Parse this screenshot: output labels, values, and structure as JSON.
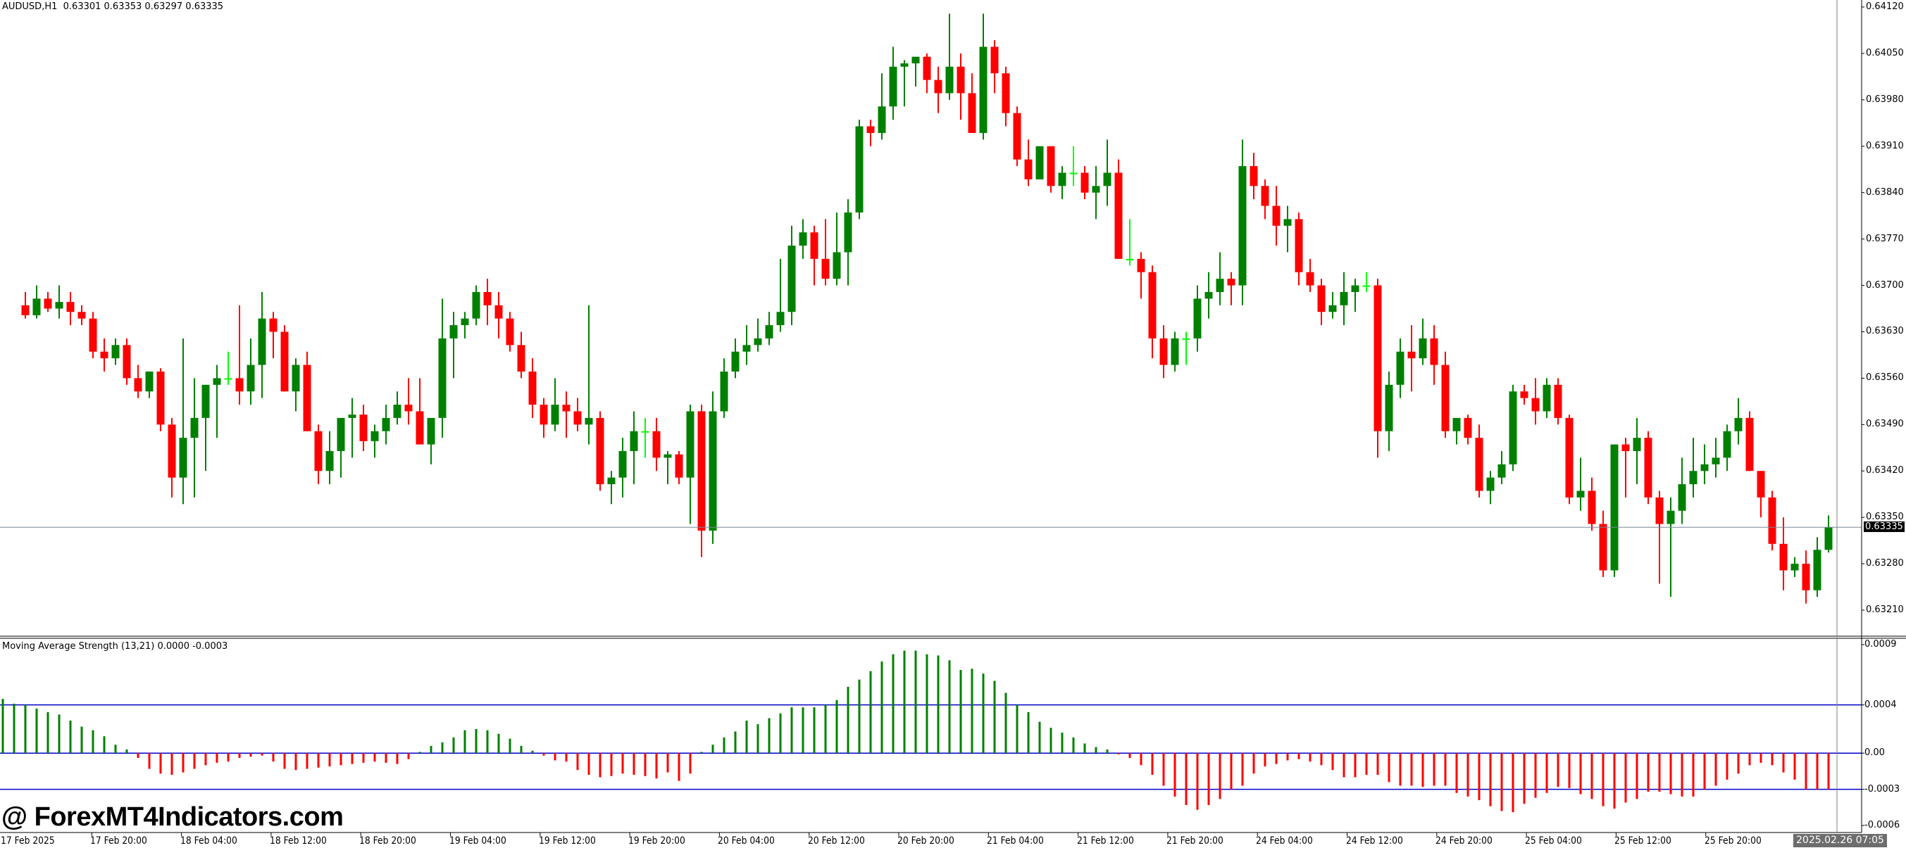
{
  "header": {
    "symbol": "AUDUSD,H1",
    "ohlc_text": "AUDUSD,H1  0.63301 0.63353 0.63297 0.63335"
  },
  "indicator": {
    "title": "Moving Average Strength (13,21) 0.0000 -0.0003"
  },
  "watermark": "@ ForexMT4Indicators.com",
  "current_price_tag": "0.63335",
  "crosshair_time_tag": "2025.02.26 07:05",
  "colors": {
    "bull": "#008000",
    "bear": "#ff0000",
    "doji": "#00ff00",
    "level_line": "#0000cc",
    "price_line": "#778899"
  },
  "chart_data": [
    {
      "type": "candlestick",
      "title": "AUDUSD,H1",
      "ylabel": "Price",
      "ylim": [
        0.6318,
        0.6413
      ],
      "y_ticks": [
        "0.64120",
        "0.64050",
        "0.63980",
        "0.63910",
        "0.63840",
        "0.63770",
        "0.63700",
        "0.63630",
        "0.63560",
        "0.63490",
        "0.63420",
        "0.63350",
        "0.63280",
        "0.63210"
      ],
      "x_ticks": [
        "17 Feb 2025",
        "17 Feb 20:00",
        "18 Feb 04:00",
        "18 Feb 12:00",
        "18 Feb 20:00",
        "19 Feb 04:00",
        "19 Feb 12:00",
        "19 Feb 20:00",
        "20 Feb 04:00",
        "20 Feb 12:00",
        "20 Feb 20:00",
        "21 Feb 04:00",
        "21 Feb 12:00",
        "21 Feb 20:00",
        "24 Feb 04:00",
        "24 Feb 12:00",
        "24 Feb 20:00",
        "25 Feb 04:00",
        "25 Feb 12:00",
        "25 Feb 20:00"
      ],
      "last_bar": {
        "open": 0.63301,
        "high": 0.63353,
        "low": 0.63297,
        "close": 0.63335
      },
      "current_price": 0.63335,
      "ohlc": [
        [
          0.6367,
          0.6369,
          0.6365,
          0.63655
        ],
        [
          0.63655,
          0.637,
          0.6365,
          0.6368
        ],
        [
          0.6368,
          0.6369,
          0.6366,
          0.63665
        ],
        [
          0.63665,
          0.637,
          0.6365,
          0.63675
        ],
        [
          0.63675,
          0.6369,
          0.6364,
          0.6366
        ],
        [
          0.6366,
          0.6367,
          0.6364,
          0.6365
        ],
        [
          0.6365,
          0.6366,
          0.6359,
          0.636
        ],
        [
          0.636,
          0.6362,
          0.6357,
          0.6359
        ],
        [
          0.6359,
          0.6362,
          0.6358,
          0.6361
        ],
        [
          0.6361,
          0.6362,
          0.6355,
          0.6356
        ],
        [
          0.6356,
          0.6358,
          0.6353,
          0.6354
        ],
        [
          0.6354,
          0.6357,
          0.6353,
          0.6357
        ],
        [
          0.6357,
          0.63575,
          0.6348,
          0.6349
        ],
        [
          0.6349,
          0.635,
          0.6338,
          0.6341
        ],
        [
          0.6341,
          0.6362,
          0.6337,
          0.6347
        ],
        [
          0.6347,
          0.6356,
          0.6338,
          0.635
        ],
        [
          0.635,
          0.6354,
          0.6342,
          0.6355
        ],
        [
          0.6355,
          0.6358,
          0.6347,
          0.6356
        ],
        [
          0.6356,
          0.636,
          0.6355,
          0.6356
        ],
        [
          0.6356,
          0.6367,
          0.6352,
          0.6354
        ],
        [
          0.6354,
          0.6362,
          0.6352,
          0.6358
        ],
        [
          0.6358,
          0.6369,
          0.6353,
          0.6365
        ],
        [
          0.6365,
          0.6366,
          0.6359,
          0.6363
        ],
        [
          0.6363,
          0.6364,
          0.6354,
          0.6354
        ],
        [
          0.6354,
          0.6359,
          0.6351,
          0.6358
        ],
        [
          0.6358,
          0.636,
          0.6348,
          0.6348
        ],
        [
          0.6348,
          0.6349,
          0.634,
          0.6342
        ],
        [
          0.6342,
          0.6348,
          0.634,
          0.6345
        ],
        [
          0.6345,
          0.6348,
          0.6341,
          0.635
        ],
        [
          0.635,
          0.6353,
          0.6344,
          0.63505
        ],
        [
          0.63505,
          0.6352,
          0.6345,
          0.63465
        ],
        [
          0.63465,
          0.6349,
          0.6344,
          0.6348
        ],
        [
          0.6348,
          0.6352,
          0.6346,
          0.635
        ],
        [
          0.635,
          0.6354,
          0.6349,
          0.6352
        ],
        [
          0.6352,
          0.6356,
          0.6349,
          0.6351
        ],
        [
          0.6351,
          0.6356,
          0.6349,
          0.6346
        ],
        [
          0.6346,
          0.6349,
          0.6343,
          0.635
        ],
        [
          0.635,
          0.6368,
          0.6347,
          0.6362
        ],
        [
          0.6362,
          0.6366,
          0.6356,
          0.6364
        ],
        [
          0.6364,
          0.6366,
          0.6362,
          0.6365
        ],
        [
          0.6365,
          0.637,
          0.6364,
          0.6369
        ],
        [
          0.6369,
          0.6371,
          0.6364,
          0.6367
        ],
        [
          0.6367,
          0.6369,
          0.6362,
          0.6365
        ],
        [
          0.6365,
          0.6366,
          0.636,
          0.6361
        ],
        [
          0.6361,
          0.6363,
          0.6356,
          0.6357
        ],
        [
          0.6357,
          0.6359,
          0.635,
          0.6352
        ],
        [
          0.6352,
          0.6353,
          0.6347,
          0.6349
        ],
        [
          0.6349,
          0.6356,
          0.6348,
          0.6352
        ],
        [
          0.6352,
          0.6354,
          0.6347,
          0.6351
        ],
        [
          0.6351,
          0.6353,
          0.6348,
          0.6349
        ],
        [
          0.6349,
          0.6367,
          0.6346,
          0.635
        ],
        [
          0.635,
          0.6351,
          0.6339,
          0.634
        ],
        [
          0.634,
          0.6342,
          0.6337,
          0.6341
        ],
        [
          0.6341,
          0.6347,
          0.6338,
          0.6345
        ],
        [
          0.6345,
          0.6351,
          0.634,
          0.6348
        ],
        [
          0.6348,
          0.635,
          0.6344,
          0.6348
        ],
        [
          0.6348,
          0.635,
          0.6342,
          0.6344
        ],
        [
          0.6344,
          0.6345,
          0.634,
          0.63445
        ],
        [
          0.63445,
          0.6345,
          0.634,
          0.6341
        ],
        [
          0.6341,
          0.6352,
          0.6334,
          0.6351
        ],
        [
          0.6351,
          0.6352,
          0.6329,
          0.6333
        ],
        [
          0.6333,
          0.6354,
          0.6331,
          0.6351
        ],
        [
          0.6351,
          0.6359,
          0.635,
          0.6357
        ],
        [
          0.6357,
          0.6362,
          0.6356,
          0.636
        ],
        [
          0.636,
          0.6364,
          0.6358,
          0.6361
        ],
        [
          0.6361,
          0.6365,
          0.636,
          0.6362
        ],
        [
          0.6362,
          0.6366,
          0.6361,
          0.6364
        ],
        [
          0.6364,
          0.6374,
          0.6363,
          0.6366
        ],
        [
          0.6366,
          0.6379,
          0.6364,
          0.6376
        ],
        [
          0.6376,
          0.638,
          0.6374,
          0.6378
        ],
        [
          0.6378,
          0.6379,
          0.637,
          0.6374
        ],
        [
          0.6374,
          0.638,
          0.637,
          0.6371
        ],
        [
          0.6371,
          0.6381,
          0.637,
          0.6375
        ],
        [
          0.6375,
          0.6383,
          0.637,
          0.6381
        ],
        [
          0.6381,
          0.6395,
          0.638,
          0.6394
        ],
        [
          0.6394,
          0.6395,
          0.6391,
          0.6393
        ],
        [
          0.6393,
          0.6402,
          0.6392,
          0.6397
        ],
        [
          0.6397,
          0.6406,
          0.6395,
          0.6403
        ],
        [
          0.6403,
          0.6404,
          0.6397,
          0.64035
        ],
        [
          0.64035,
          0.6404,
          0.64,
          0.64045
        ],
        [
          0.64045,
          0.6405,
          0.6399,
          0.6401
        ],
        [
          0.6401,
          0.6403,
          0.6396,
          0.6399
        ],
        [
          0.6399,
          0.6411,
          0.6398,
          0.6403
        ],
        [
          0.6403,
          0.6405,
          0.6395,
          0.6399
        ],
        [
          0.6399,
          0.6402,
          0.6393,
          0.6393
        ],
        [
          0.6393,
          0.6411,
          0.6392,
          0.6406
        ],
        [
          0.6406,
          0.6407,
          0.6399,
          0.6402
        ],
        [
          0.6402,
          0.6403,
          0.6394,
          0.6396
        ],
        [
          0.6396,
          0.6397,
          0.6388,
          0.6389
        ],
        [
          0.6389,
          0.6392,
          0.6385,
          0.6386
        ],
        [
          0.6386,
          0.6391,
          0.6386,
          0.6391
        ],
        [
          0.6391,
          0.6391,
          0.6384,
          0.6385
        ],
        [
          0.6385,
          0.6388,
          0.6383,
          0.6387
        ],
        [
          0.6387,
          0.6391,
          0.6385,
          0.6387
        ],
        [
          0.6387,
          0.6388,
          0.6383,
          0.6384
        ],
        [
          0.6384,
          0.6388,
          0.638,
          0.6385
        ],
        [
          0.6385,
          0.6392,
          0.6382,
          0.6387
        ],
        [
          0.6387,
          0.6389,
          0.6379,
          0.6374
        ],
        [
          0.6374,
          0.638,
          0.6373,
          0.6374
        ],
        [
          0.6374,
          0.6375,
          0.6368,
          0.6372
        ],
        [
          0.6372,
          0.6373,
          0.6359,
          0.6362
        ],
        [
          0.6362,
          0.6364,
          0.6356,
          0.6358
        ],
        [
          0.6358,
          0.6363,
          0.6357,
          0.6362
        ],
        [
          0.6362,
          0.6363,
          0.6358,
          0.6362
        ],
        [
          0.6362,
          0.637,
          0.636,
          0.6368
        ],
        [
          0.6368,
          0.6372,
          0.6365,
          0.6369
        ],
        [
          0.6369,
          0.6375,
          0.6367,
          0.6371
        ],
        [
          0.6371,
          0.6372,
          0.6367,
          0.637
        ],
        [
          0.637,
          0.6392,
          0.6367,
          0.6388
        ],
        [
          0.6388,
          0.639,
          0.6383,
          0.6385
        ],
        [
          0.6385,
          0.6386,
          0.638,
          0.6382
        ],
        [
          0.6382,
          0.6385,
          0.6376,
          0.6379
        ],
        [
          0.6379,
          0.6382,
          0.6375,
          0.638
        ],
        [
          0.638,
          0.6381,
          0.637,
          0.6372
        ],
        [
          0.6372,
          0.6374,
          0.6369,
          0.637
        ],
        [
          0.637,
          0.6371,
          0.6364,
          0.6366
        ],
        [
          0.6366,
          0.6369,
          0.6365,
          0.6367
        ],
        [
          0.6367,
          0.6372,
          0.6364,
          0.6369
        ],
        [
          0.6369,
          0.6371,
          0.6366,
          0.637
        ],
        [
          0.637,
          0.6372,
          0.6369,
          0.637
        ],
        [
          0.637,
          0.6371,
          0.6344,
          0.6348
        ],
        [
          0.6348,
          0.6357,
          0.6345,
          0.6355
        ],
        [
          0.6355,
          0.6362,
          0.6353,
          0.636
        ],
        [
          0.636,
          0.6364,
          0.6354,
          0.6359
        ],
        [
          0.6359,
          0.6365,
          0.6358,
          0.6362
        ],
        [
          0.6362,
          0.6364,
          0.6355,
          0.6358
        ],
        [
          0.6358,
          0.636,
          0.6347,
          0.6348
        ],
        [
          0.6348,
          0.635,
          0.6346,
          0.635
        ],
        [
          0.635,
          0.63505,
          0.6346,
          0.6347
        ],
        [
          0.6347,
          0.6349,
          0.6338,
          0.6339
        ],
        [
          0.6339,
          0.6342,
          0.6337,
          0.6341
        ],
        [
          0.6341,
          0.6345,
          0.634,
          0.6343
        ],
        [
          0.6343,
          0.6355,
          0.6342,
          0.6354
        ],
        [
          0.6354,
          0.6355,
          0.6352,
          0.6353
        ],
        [
          0.6353,
          0.6356,
          0.6349,
          0.6351
        ],
        [
          0.6351,
          0.6356,
          0.635,
          0.6355
        ],
        [
          0.6355,
          0.6356,
          0.6349,
          0.635
        ],
        [
          0.635,
          0.63505,
          0.6337,
          0.6338
        ],
        [
          0.6338,
          0.6344,
          0.6336,
          0.6339
        ],
        [
          0.6339,
          0.6341,
          0.6333,
          0.6334
        ],
        [
          0.6334,
          0.6336,
          0.6326,
          0.6327
        ],
        [
          0.6327,
          0.6346,
          0.6326,
          0.6346
        ],
        [
          0.6346,
          0.6347,
          0.6338,
          0.6345
        ],
        [
          0.6345,
          0.635,
          0.634,
          0.6347
        ],
        [
          0.6347,
          0.6348,
          0.6337,
          0.6338
        ],
        [
          0.6338,
          0.6339,
          0.6325,
          0.6334
        ],
        [
          0.6334,
          0.6338,
          0.6323,
          0.6336
        ],
        [
          0.6336,
          0.6344,
          0.6334,
          0.634
        ],
        [
          0.634,
          0.6347,
          0.6338,
          0.6342
        ],
        [
          0.6342,
          0.6346,
          0.634,
          0.6343
        ],
        [
          0.6343,
          0.6347,
          0.6341,
          0.6344
        ],
        [
          0.6344,
          0.6349,
          0.6342,
          0.6348
        ],
        [
          0.6348,
          0.6353,
          0.6346,
          0.635
        ],
        [
          0.635,
          0.6351,
          0.6342,
          0.6342
        ],
        [
          0.6342,
          0.6342,
          0.6335,
          0.6338
        ],
        [
          0.6338,
          0.6339,
          0.633,
          0.6331
        ],
        [
          0.6331,
          0.6335,
          0.6324,
          0.6327
        ],
        [
          0.6327,
          0.6329,
          0.6326,
          0.6328
        ],
        [
          0.6328,
          0.633,
          0.6322,
          0.6324
        ],
        [
          0.6324,
          0.6332,
          0.6323,
          0.63301
        ],
        [
          0.63301,
          0.63353,
          0.63297,
          0.63335
        ]
      ]
    },
    {
      "type": "bar",
      "title": "Moving Average Strength (13,21)",
      "values_text": "0.0000 -0.0003",
      "ylim": [
        -0.0006,
        0.0009
      ],
      "y_ticks": [
        "0.0009",
        "0.0004",
        "0.00",
        "-0.0003",
        "-0.0006"
      ],
      "levels": [
        0.0004,
        0.0,
        -0.0003
      ],
      "values": [
        0.00045,
        0.00041,
        0.0004,
        0.00037,
        0.00034,
        0.00032,
        0.00027,
        0.00022,
        0.00019,
        0.00014,
        7e-05,
        3e-05,
        -4e-05,
        -0.00013,
        -0.00017,
        -0.00018,
        -0.00016,
        -0.00013,
        -0.0001,
        -8e-05,
        -7e-05,
        -4e-05,
        -3e-05,
        -2e-05,
        -7e-05,
        -0.00013,
        -0.00014,
        -0.00013,
        -0.00012,
        -0.00011,
        -0.0001,
        -9e-05,
        -8e-05,
        -7e-05,
        -8e-05,
        -9e-05,
        -5e-05,
        1e-05,
        6e-05,
        9e-05,
        0.00013,
        0.00019,
        0.0002,
        0.00019,
        0.00016,
        0.00012,
        6e-05,
        2e-05,
        -2e-05,
        -6e-05,
        -7e-05,
        -0.00014,
        -0.00018,
        -0.0002,
        -0.00019,
        -0.00017,
        -0.00018,
        -0.00019,
        -0.00021,
        -0.00016,
        -0.00023,
        -0.00017,
        1e-05,
        7e-05,
        0.00013,
        0.00018,
        0.00027,
        0.00024,
        0.00029,
        0.00033,
        0.00038,
        0.00038,
        0.00038,
        0.0004,
        0.00044,
        0.00055,
        0.00061,
        0.00068,
        0.00076,
        0.00082,
        0.00085,
        0.00085,
        0.00082,
        0.00081,
        0.00077,
        0.00069,
        0.0007,
        0.00066,
        0.0006,
        0.0005,
        0.0004,
        0.00034,
        0.00026,
        0.00021,
        0.00017,
        0.00013,
        8e-05,
        5e-05,
        3e-05,
        -1e-05,
        -4e-05,
        -0.0001,
        -0.00018,
        -0.00027,
        -0.00036,
        -0.00043,
        -0.00047,
        -0.00043,
        -0.00038,
        -0.0003,
        -0.00027,
        -0.00017,
        -0.00011,
        -9e-05,
        -6e-05,
        -5e-05,
        -7e-05,
        -0.0001,
        -0.00014,
        -0.0002,
        -0.0002,
        -0.00018,
        -0.00018,
        -0.00024,
        -0.00027,
        -0.00027,
        -0.00028,
        -0.00027,
        -0.00027,
        -0.00033,
        -0.00036,
        -0.00039,
        -0.00044,
        -0.00048,
        -0.00049,
        -0.00042,
        -0.00037,
        -0.00033,
        -0.00028,
        -0.00029,
        -0.00034,
        -0.00038,
        -0.00044,
        -0.00046,
        -0.00041,
        -0.00038,
        -0.00032,
        -0.00032,
        -0.00034,
        -0.00036,
        -0.00036,
        -0.0003,
        -0.00027,
        -0.00022,
        -0.00017,
        -0.0001,
        -8e-05,
        -0.0001,
        -0.00016,
        -0.00022,
        -0.0003,
        -0.0003,
        -0.0003
      ]
    }
  ]
}
